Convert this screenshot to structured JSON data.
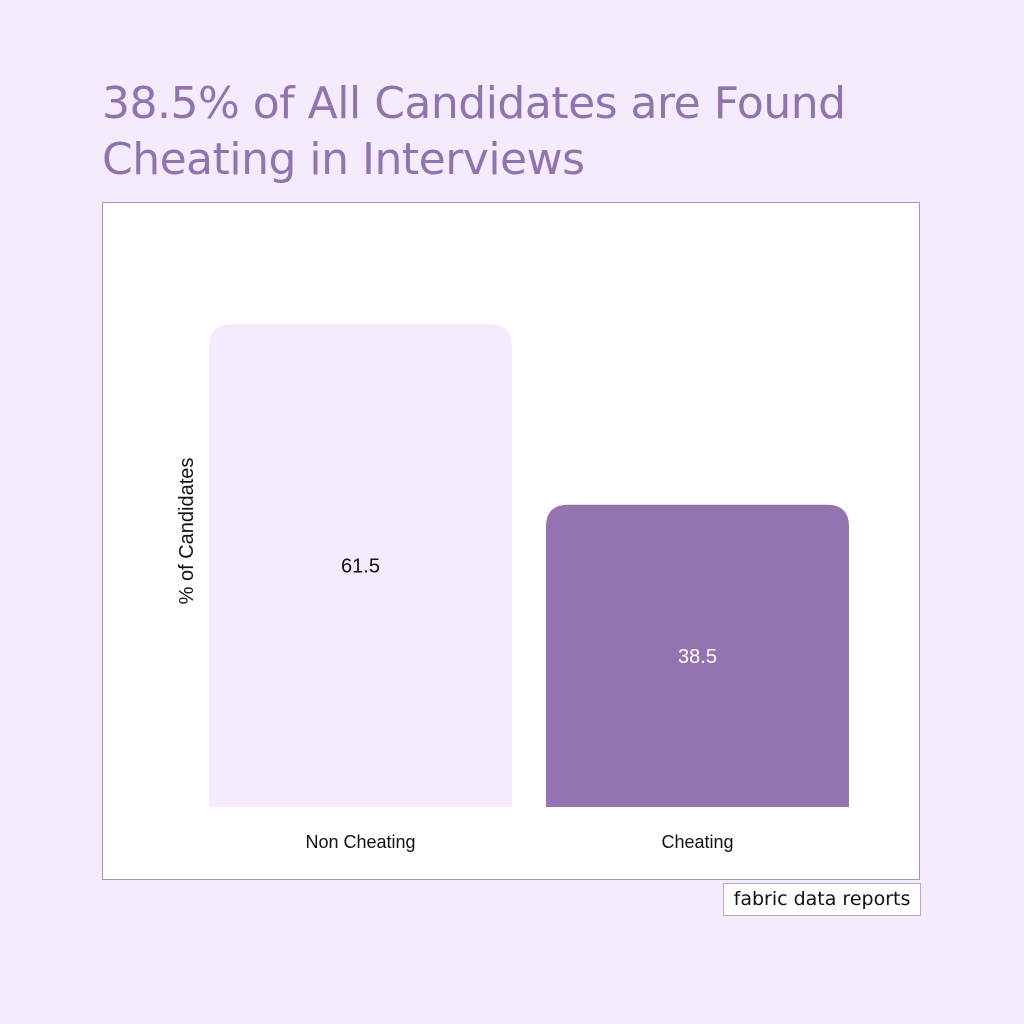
{
  "header": {
    "title": "38.5% of All Candidates are Found Cheating in Interviews"
  },
  "chart_data": {
    "type": "bar",
    "categories": [
      "Non Cheating",
      "Cheating"
    ],
    "values": [
      61.5,
      38.5
    ],
    "data_labels": [
      "61.5",
      "38.5"
    ],
    "title": "38.5% of All Candidates are Found Cheating in Interviews",
    "xlabel": "",
    "ylabel": "% of Candidates",
    "ylim": [
      0,
      70
    ],
    "grid": false,
    "legend": "none",
    "bar_colors": [
      "#f4ecfc",
      "#9374b0"
    ],
    "label_colors": [
      "#111111",
      "#ffffff"
    ]
  },
  "footer": {
    "credit": "fabric data reports"
  },
  "colors": {
    "background": "#f4ecfc",
    "accent": "#9173b0"
  }
}
